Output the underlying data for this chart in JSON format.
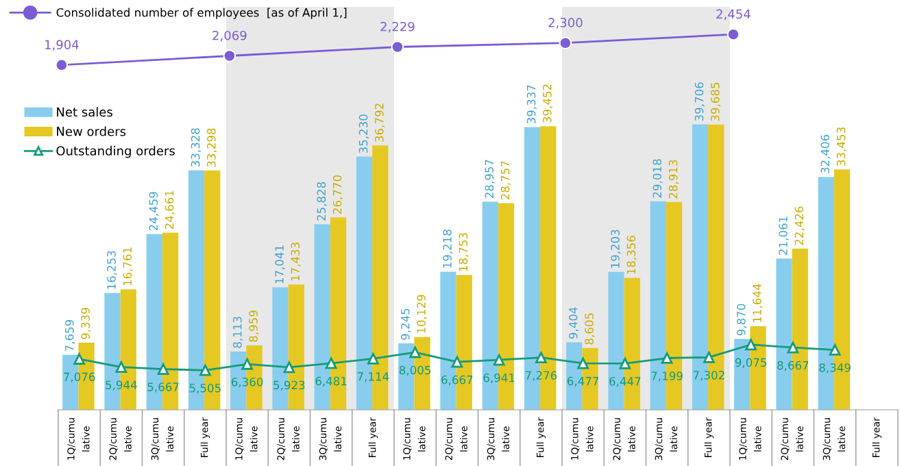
{
  "chart_data": [
    {
      "type": "line",
      "categories": [
        null,
        null,
        null,
        null,
        null
      ],
      "tick_labels": false,
      "legend": "top left",
      "marker": "circle",
      "grid": false,
      "series": [
        {
          "name": "Consolidated number of employees  [as of April 1,]",
          "color": "#7b5cd6",
          "values": [
            1904,
            2069,
            2229,
            2300,
            2454
          ],
          "value_labels": [
            "1,904",
            "2,069",
            "2,229",
            "2,300",
            "2,454"
          ]
        }
      ]
    },
    {
      "type": "bar",
      "categories": [
        "1Q/cumu\nlative",
        "2Q/cumu\nlative",
        "3Q/cumu\nlative",
        "Full year",
        "1Q/cumu\nlative",
        "2Q/cumu\nlative",
        "3Q/cumu\nlative",
        "Full year",
        "1Q/cumu\nlative",
        "2Q/cumu\nlative",
        "3Q/cumu\nlative",
        "Full year",
        "1Q/cumu\nlative",
        "2Q/cumu\nlative",
        "3Q/cumu\nlative",
        "Full year",
        "1Q/cumu\nlative",
        "2Q/cumu\nlative",
        "3Q/cumu\nlative",
        "Full year"
      ],
      "tick_labels": "x",
      "legend": "top left",
      "grid": false,
      "series": [
        {
          "name": "Net sales",
          "type": "bar",
          "color": "#88cdee",
          "values": [
            7659,
            16253,
            24459,
            33328,
            8113,
            17041,
            25828,
            35230,
            9245,
            19218,
            28957,
            39337,
            9404,
            19203,
            29018,
            39706,
            9870,
            21061,
            32406,
            null
          ],
          "value_labels": [
            "7,659",
            "16,253",
            "24,459",
            "33,328",
            "8,113",
            "17,041",
            "25,828",
            "35,230",
            "9,245",
            "19,218",
            "28,957",
            "39,337",
            "9,404",
            "19,203",
            "29,018",
            "39,706",
            "9,870",
            "21,061",
            "32,406",
            null
          ]
        },
        {
          "name": "New orders",
          "type": "bar",
          "color": "#e5c822",
          "values": [
            9339,
            16761,
            24661,
            33298,
            8959,
            17433,
            26770,
            36792,
            10129,
            18753,
            28757,
            39452,
            8605,
            18356,
            28913,
            39685,
            11644,
            22426,
            33453,
            null
          ],
          "value_labels": [
            "9,339",
            "16,761",
            "24,661",
            "33,298",
            "8,959",
            "17,433",
            "26,770",
            "36,792",
            "10,129",
            "18,753",
            "28,757",
            "39,452",
            "8,605",
            "18,356",
            "28,913",
            "39,685",
            "11,644",
            "22,426",
            "33,453",
            null
          ]
        },
        {
          "name": "Outstanding orders",
          "type": "line",
          "marker": "triangle",
          "color": "#169b7a",
          "values": [
            7076,
            5944,
            5667,
            5505,
            6360,
            5923,
            6481,
            7114,
            8005,
            6667,
            6941,
            7276,
            6477,
            6447,
            7199,
            7302,
            9075,
            8667,
            8349,
            null
          ],
          "value_labels": [
            "7,076",
            "5,944",
            "5,667",
            "5,505",
            "6,360",
            "5,923",
            "6,481",
            "7,114",
            "8,005",
            "6,667",
            "6,941",
            "7,276",
            "6,477",
            "6,447",
            "7,199",
            "7,302",
            "9,075",
            "8,667",
            "8,349",
            null
          ]
        }
      ]
    }
  ]
}
